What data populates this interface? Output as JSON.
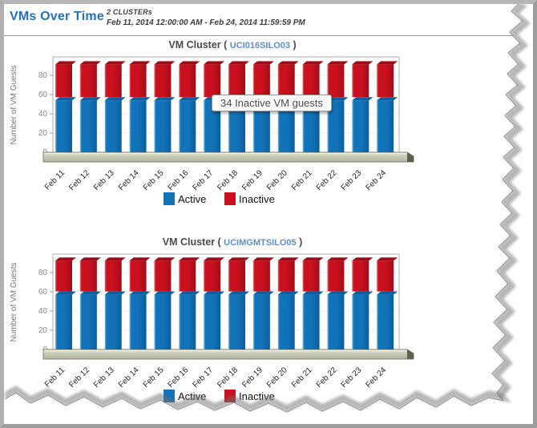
{
  "header": {
    "title": "VMs Over Time",
    "subtitle": "2 CLUSTERs",
    "date_range": "Feb 11, 2014 12:00:00 AM - Feb 24, 2014 11:59:59 PM"
  },
  "tooltip": {
    "text": "34 Inactive VM guests"
  },
  "colors": {
    "title_blue": "#2471B8",
    "link": "#5C8FCC",
    "series": [
      {
        "name": "Active",
        "main": "#1273B9",
        "light": "#7FC0E8",
        "dark": "#0C5E9A",
        "cap": "#0D5FA0"
      },
      {
        "name": "Inactive",
        "main": "#C8101E",
        "light": "#E96B6B",
        "dark": "#A00D18",
        "cap": "#9C0D18"
      }
    ]
  },
  "chart_data": [
    {
      "type": "bar",
      "stacked": true,
      "title_prefix": "VM Cluster (",
      "cluster": "UCI016SILO03",
      "title_suffix": ")",
      "ylabel": "Number of VM Guests",
      "ylim": [
        0,
        100
      ],
      "yticks": [
        0,
        20,
        40,
        60,
        80
      ],
      "grid": true,
      "legend_position": "bottom",
      "categories": [
        "Feb 11",
        "Feb 12",
        "Feb 13",
        "Feb 14",
        "Feb 15",
        "Feb 16",
        "Feb 17",
        "Feb 18",
        "Feb 19",
        "Feb 20",
        "Feb 21",
        "Feb 22",
        "Feb 23",
        "Feb 24"
      ],
      "series": [
        {
          "name": "Active",
          "values": [
            54,
            54,
            54,
            54,
            54,
            54,
            54,
            54,
            54,
            54,
            54,
            54,
            54,
            54
          ]
        },
        {
          "name": "Inactive",
          "values": [
            34,
            34,
            34,
            34,
            34,
            34,
            34,
            34,
            34,
            34,
            34,
            34,
            34,
            34
          ]
        }
      ]
    },
    {
      "type": "bar",
      "stacked": true,
      "title_prefix": "VM Cluster (",
      "cluster": "UCIMGMTSILO05",
      "title_suffix": ")",
      "ylabel": "Number of VM Guests",
      "ylim": [
        0,
        100
      ],
      "yticks": [
        0,
        20,
        40,
        60,
        80
      ],
      "grid": true,
      "legend_position": "bottom",
      "categories": [
        "Feb 11",
        "Feb 12",
        "Feb 13",
        "Feb 14",
        "Feb 15",
        "Feb 16",
        "Feb 17",
        "Feb 18",
        "Feb 19",
        "Feb 20",
        "Feb 21",
        "Feb 22",
        "Feb 23",
        "Feb 24"
      ],
      "series": [
        {
          "name": "Active",
          "values": [
            57,
            57,
            57,
            57,
            57,
            57,
            57,
            57,
            57,
            57,
            57,
            57,
            57,
            57
          ]
        },
        {
          "name": "Inactive",
          "values": [
            32,
            32,
            32,
            32,
            32,
            32,
            32,
            32,
            32,
            32,
            32,
            32,
            32,
            32
          ]
        }
      ]
    }
  ]
}
